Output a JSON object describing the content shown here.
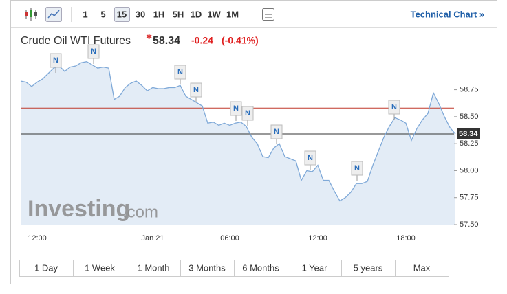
{
  "toolbar": {
    "intervals": [
      "1",
      "5",
      "15",
      "30",
      "1H",
      "5H",
      "1D",
      "1W",
      "1M"
    ],
    "link": "Technical Chart »"
  },
  "header": {
    "title": "Crude Oil WTI Futures",
    "price": "58.34",
    "change": "-0.24",
    "change_percent": "(-0.41%)"
  },
  "watermark": [
    "Investing",
    ".com"
  ],
  "news_markers": [
    "N",
    "N",
    "N",
    "N",
    "N",
    "N",
    "N",
    "N",
    "N",
    "N"
  ],
  "ranges": [
    "1 Day",
    "1 Week",
    "1 Month",
    "3 Months",
    "6 Months",
    "1 Year",
    "5 years",
    "Max"
  ],
  "chart_data": {
    "type": "line",
    "color": "#7fa9d8",
    "fill": "#e3ecf6",
    "categories": [
      null,
      null,
      null,
      "12:00",
      null,
      null,
      null,
      null,
      null,
      null,
      null,
      null,
      null,
      null,
      null,
      null,
      null,
      null,
      null,
      null,
      null,
      null,
      null,
      null,
      "Jan 21",
      null,
      null,
      null,
      null,
      null,
      null,
      null,
      null,
      null,
      null,
      null,
      null,
      null,
      "06:00",
      null,
      null,
      null,
      null,
      null,
      null,
      null,
      null,
      null,
      null,
      null,
      null,
      null,
      null,
      null,
      "12:00",
      null,
      null,
      null,
      null,
      null,
      null,
      null,
      null,
      null,
      null,
      null,
      null,
      null,
      null,
      null,
      "18:00",
      null,
      null,
      null,
      null,
      null,
      null,
      null,
      null,
      null
    ],
    "values": [
      58.83,
      58.82,
      58.78,
      58.82,
      58.85,
      58.9,
      58.95,
      58.97,
      58.92,
      58.96,
      58.97,
      59.0,
      59.01,
      58.98,
      58.95,
      58.96,
      58.95,
      58.66,
      58.69,
      58.77,
      58.81,
      58.83,
      58.79,
      58.74,
      58.77,
      58.76,
      58.76,
      58.77,
      58.77,
      58.79,
      58.69,
      58.66,
      58.63,
      58.6,
      58.44,
      58.45,
      58.42,
      58.44,
      58.42,
      58.44,
      58.45,
      58.41,
      58.31,
      58.25,
      58.13,
      58.12,
      58.21,
      58.25,
      58.13,
      58.11,
      58.09,
      57.91,
      58.0,
      57.99,
      58.05,
      57.91,
      57.91,
      57.81,
      57.72,
      57.75,
      57.8,
      57.88,
      57.88,
      57.9,
      58.05,
      58.18,
      58.31,
      58.41,
      58.49,
      58.47,
      58.44,
      58.28,
      58.39,
      58.47,
      58.53,
      58.72,
      58.62,
      58.5,
      58.4,
      58.34
    ],
    "ylim": [
      57.5,
      59.04
    ],
    "yticks": [
      {
        "value": 57.5,
        "label": "57.50"
      },
      57.75,
      {
        "value": 58,
        "label": "58.00"
      },
      58.25,
      {
        "value": 58.5,
        "label": "58.50"
      },
      58.75
    ],
    "reference_lines": [
      {
        "value": 58.58,
        "color": "#c0392b"
      },
      {
        "value": 58.34,
        "color": "#333333",
        "label": "58.34"
      }
    ]
  }
}
